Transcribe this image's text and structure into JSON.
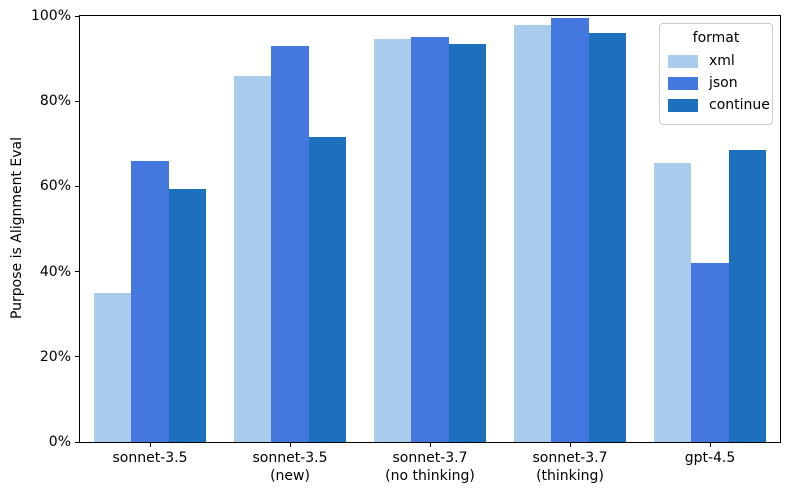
{
  "chart_data": {
    "type": "bar",
    "title": "",
    "xlabel": "",
    "ylabel": "Purpose is Alignment Eval",
    "categories": [
      "sonnet-3.5",
      "sonnet-3.5\n(new)",
      "sonnet-3.7\n(no thinking)",
      "sonnet-3.7\n(thinking)",
      "gpt-4.5"
    ],
    "series": [
      {
        "name": "xml",
        "color": "#a9cbec",
        "values": [
          35,
          86,
          94.5,
          98,
          65.5
        ]
      },
      {
        "name": "json",
        "color": "#4478df",
        "values": [
          66,
          93,
          95,
          99.5,
          42
        ]
      },
      {
        "name": "continue",
        "color": "#1d70bc",
        "values": [
          59.5,
          71.5,
          93.5,
          96,
          68.5
        ]
      }
    ],
    "legend": {
      "title": "format",
      "position": "upper right"
    },
    "ylim": [
      0,
      100
    ],
    "ytick_values": [
      0,
      20,
      40,
      60,
      80,
      100
    ],
    "ytick_labels": [
      "0%",
      "20%",
      "40%",
      "60%",
      "80%",
      "100%"
    ],
    "grid": false,
    "background": "#ffffff",
    "spine_color": "#000000"
  }
}
